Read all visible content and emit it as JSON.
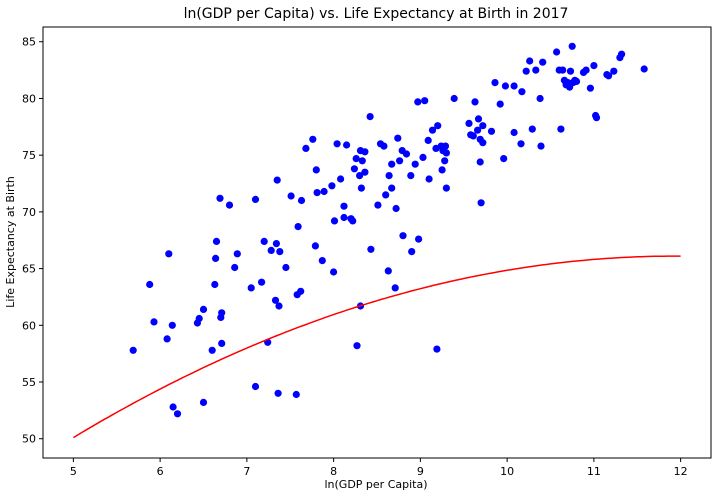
{
  "chart_data": {
    "type": "scatter",
    "title": "ln(GDP per Capita) vs. Life Expectancy at Birth in 2017",
    "xlabel": "ln(GDP per Capita)",
    "ylabel": "Life Expectancy at Birth",
    "xlim": [
      4.65,
      12.35
    ],
    "ylim": [
      48.3,
      86.3
    ],
    "xticks": [
      "5",
      "6",
      "7",
      "8",
      "9",
      "10",
      "11",
      "12"
    ],
    "yticks": [
      "50",
      "55",
      "60",
      "65",
      "70",
      "75",
      "80",
      "85"
    ],
    "grid": false,
    "colors": {
      "points": "#0000ff",
      "fit": "#ff0000",
      "axes": "#000000"
    },
    "points": [
      [
        5.69,
        57.8
      ],
      [
        5.88,
        63.6
      ],
      [
        5.93,
        60.3
      ],
      [
        6.08,
        58.8
      ],
      [
        6.1,
        66.3
      ],
      [
        6.14,
        60.0
      ],
      [
        6.15,
        52.8
      ],
      [
        6.2,
        52.2
      ],
      [
        6.43,
        60.2
      ],
      [
        6.45,
        60.6
      ],
      [
        6.5,
        61.4
      ],
      [
        6.5,
        53.2
      ],
      [
        6.6,
        57.8
      ],
      [
        6.63,
        63.6
      ],
      [
        6.64,
        65.9
      ],
      [
        6.65,
        67.4
      ],
      [
        6.69,
        71.2
      ],
      [
        6.7,
        60.7
      ],
      [
        6.71,
        61.1
      ],
      [
        6.71,
        58.4
      ],
      [
        6.8,
        70.6
      ],
      [
        6.86,
        65.1
      ],
      [
        6.89,
        66.3
      ],
      [
        7.05,
        63.3
      ],
      [
        7.1,
        71.1
      ],
      [
        7.1,
        54.6
      ],
      [
        7.17,
        63.8
      ],
      [
        7.2,
        67.4
      ],
      [
        7.24,
        58.5
      ],
      [
        7.28,
        66.6
      ],
      [
        7.33,
        62.2
      ],
      [
        7.35,
        72.8
      ],
      [
        7.34,
        67.2
      ],
      [
        7.36,
        54.0
      ],
      [
        7.37,
        61.7
      ],
      [
        7.38,
        66.5
      ],
      [
        7.45,
        65.1
      ],
      [
        7.51,
        71.4
      ],
      [
        7.57,
        53.9
      ],
      [
        7.58,
        62.7
      ],
      [
        7.59,
        68.7
      ],
      [
        7.62,
        63.0
      ],
      [
        7.63,
        71.0
      ],
      [
        7.68,
        75.6
      ],
      [
        7.76,
        76.4
      ],
      [
        7.79,
        67.0
      ],
      [
        7.8,
        73.7
      ],
      [
        7.81,
        71.7
      ],
      [
        7.87,
        65.7
      ],
      [
        7.89,
        71.8
      ],
      [
        7.98,
        72.3
      ],
      [
        8.01,
        69.2
      ],
      [
        8.0,
        64.7
      ],
      [
        8.04,
        76.0
      ],
      [
        8.08,
        72.9
      ],
      [
        8.12,
        70.5
      ],
      [
        8.12,
        69.5
      ],
      [
        8.15,
        75.9
      ],
      [
        8.2,
        69.4
      ],
      [
        8.22,
        69.2
      ],
      [
        8.24,
        73.8
      ],
      [
        8.26,
        74.7
      ],
      [
        8.27,
        58.2
      ],
      [
        8.3,
        73.2
      ],
      [
        8.31,
        61.7
      ],
      [
        8.32,
        72.1
      ],
      [
        8.31,
        75.4
      ],
      [
        8.33,
        74.5
      ],
      [
        8.36,
        75.3
      ],
      [
        8.36,
        73.5
      ],
      [
        8.42,
        78.4
      ],
      [
        8.43,
        66.7
      ],
      [
        8.51,
        70.6
      ],
      [
        8.54,
        76.0
      ],
      [
        8.58,
        75.8
      ],
      [
        8.6,
        71.5
      ],
      [
        8.63,
        64.8
      ],
      [
        8.64,
        73.2
      ],
      [
        8.67,
        72.1
      ],
      [
        8.67,
        74.2
      ],
      [
        8.71,
        63.3
      ],
      [
        8.72,
        70.3
      ],
      [
        8.74,
        76.5
      ],
      [
        8.76,
        74.5
      ],
      [
        8.79,
        75.4
      ],
      [
        8.8,
        67.9
      ],
      [
        8.84,
        75.1
      ],
      [
        8.89,
        73.2
      ],
      [
        8.9,
        66.5
      ],
      [
        8.94,
        74.2
      ],
      [
        8.97,
        79.7
      ],
      [
        8.98,
        67.6
      ],
      [
        9.03,
        74.8
      ],
      [
        9.05,
        79.8
      ],
      [
        9.09,
        76.3
      ],
      [
        9.1,
        72.9
      ],
      [
        9.14,
        77.2
      ],
      [
        9.18,
        75.6
      ],
      [
        9.19,
        57.9
      ],
      [
        9.2,
        77.6
      ],
      [
        9.24,
        75.8
      ],
      [
        9.25,
        73.7
      ],
      [
        9.26,
        75.4
      ],
      [
        9.28,
        74.5
      ],
      [
        9.29,
        75.8
      ],
      [
        9.3,
        72.1
      ],
      [
        9.3,
        75.2
      ],
      [
        9.39,
        80.0
      ],
      [
        9.56,
        77.8
      ],
      [
        9.58,
        76.8
      ],
      [
        9.61,
        76.7
      ],
      [
        9.63,
        79.7
      ],
      [
        9.66,
        77.2
      ],
      [
        9.67,
        78.2
      ],
      [
        9.69,
        74.4
      ],
      [
        9.69,
        76.4
      ],
      [
        9.7,
        70.8
      ],
      [
        9.72,
        77.6
      ],
      [
        9.72,
        76.1
      ],
      [
        9.82,
        77.1
      ],
      [
        9.86,
        81.4
      ],
      [
        9.92,
        79.5
      ],
      [
        9.96,
        74.7
      ],
      [
        9.98,
        81.1
      ],
      [
        10.08,
        77.0
      ],
      [
        10.08,
        81.1
      ],
      [
        10.16,
        76.0
      ],
      [
        10.17,
        80.6
      ],
      [
        10.22,
        82.4
      ],
      [
        10.26,
        83.3
      ],
      [
        10.29,
        77.3
      ],
      [
        10.33,
        82.5
      ],
      [
        10.38,
        80.0
      ],
      [
        10.39,
        75.8
      ],
      [
        10.41,
        83.2
      ],
      [
        10.57,
        84.1
      ],
      [
        10.6,
        82.5
      ],
      [
        10.62,
        77.3
      ],
      [
        10.64,
        82.5
      ],
      [
        10.66,
        81.6
      ],
      [
        10.68,
        81.2
      ],
      [
        10.7,
        81.4
      ],
      [
        10.72,
        81.0
      ],
      [
        10.73,
        82.4
      ],
      [
        10.75,
        84.6
      ],
      [
        10.76,
        81.4
      ],
      [
        10.78,
        81.6
      ],
      [
        10.8,
        81.5
      ],
      [
        10.88,
        82.3
      ],
      [
        10.91,
        82.5
      ],
      [
        10.96,
        80.9
      ],
      [
        11.0,
        82.9
      ],
      [
        11.02,
        78.5
      ],
      [
        11.03,
        78.3
      ],
      [
        11.15,
        82.1
      ],
      [
        11.17,
        82.0
      ],
      [
        11.23,
        82.4
      ],
      [
        11.3,
        83.6
      ],
      [
        11.32,
        83.9
      ],
      [
        11.58,
        82.6
      ]
    ],
    "fit_curve": {
      "type": "quadratic",
      "x_range": [
        5,
        12
      ],
      "coefficients": [
        -0.332,
        7.93,
        18.75
      ]
    }
  }
}
